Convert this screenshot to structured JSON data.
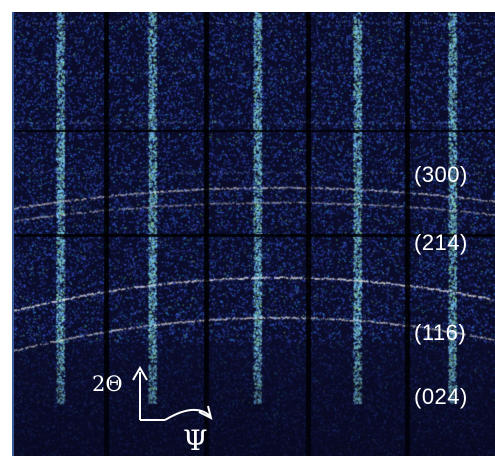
{
  "labels": {
    "peak_300": "(300)",
    "peak_214": "(214)",
    "peak_116": "(116)",
    "peak_024": "(024)"
  },
  "axes": {
    "two_theta": "2Θ",
    "psi": "Ψ"
  },
  "colors": {
    "background": "#0a0c2a",
    "noise": "#3f5ad8",
    "streak": "#9ad7ff",
    "ring": "#ffffff",
    "annotation": "#ffffff"
  }
}
